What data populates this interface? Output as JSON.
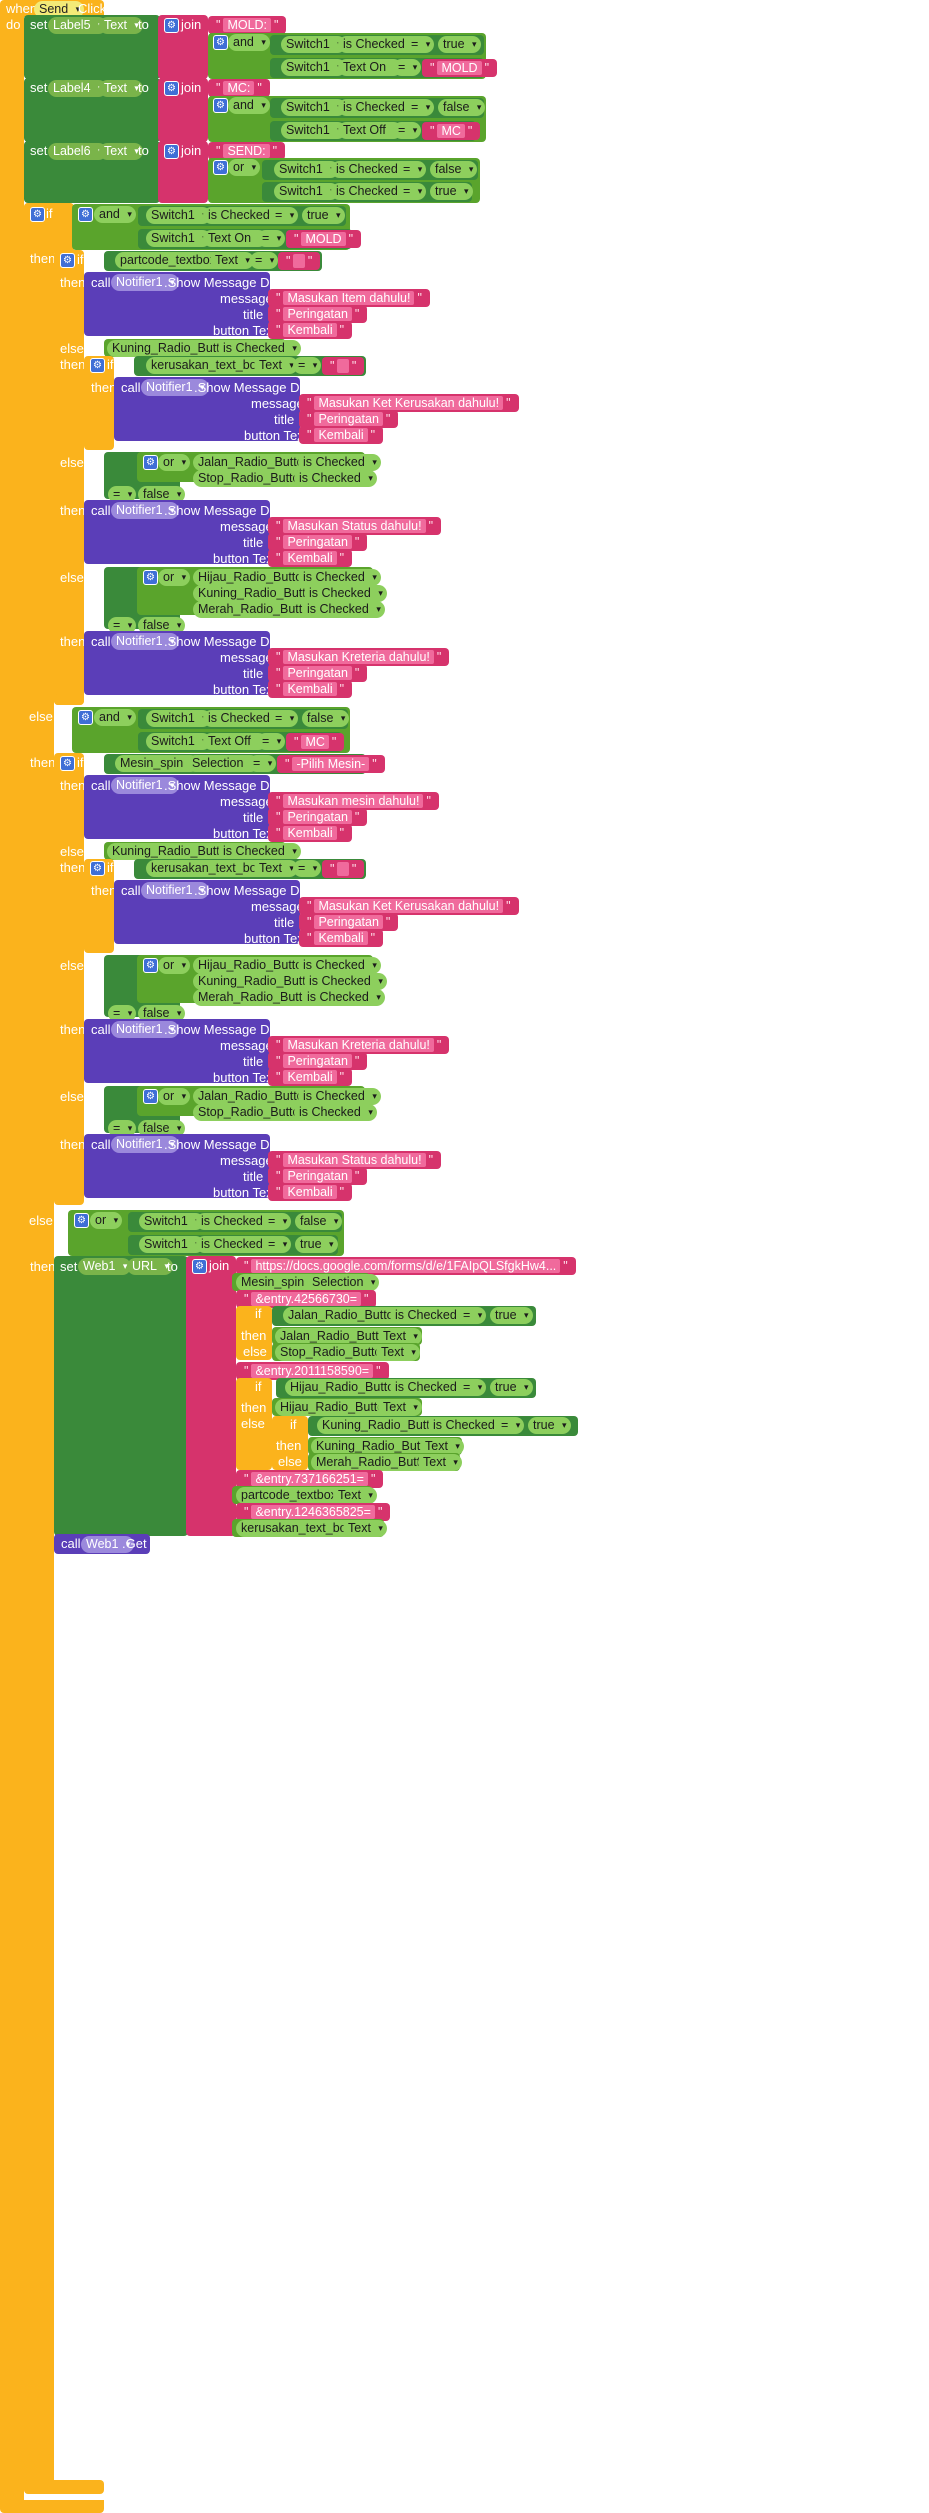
{
  "event": {
    "when": "when",
    "component": "Send",
    "event": "Click",
    "do": "do"
  },
  "kw": {
    "set": "set",
    "to": "to",
    "join": "join",
    "and": "and",
    "or": "or",
    "if": "if",
    "then": "then",
    "else_if": "else if",
    "else": "else",
    "call": "call",
    "show": ".Show Message Dialog",
    "message": "message",
    "title": "title",
    "button_text": "button Text",
    "eq": "=",
    "is_checked": "is Checked",
    "text": "Text",
    "text_on": "Text On",
    "text_off": "Text Off",
    "selection": "Selection",
    "url": "URL",
    "get": ".Get"
  },
  "components": {
    "label5": "Label5",
    "label4": "Label4",
    "label6": "Label6",
    "switch1": "Switch1",
    "notifier": "Notifier1",
    "partcode": "partcode_textbox",
    "kuning": "Kuning_Radio_Button",
    "kerusakan": "kerusakan_text_box",
    "jalan": "Jalan_Radio_Button",
    "stop": "Stop_Radio_Button",
    "hijau": "Hijau_Radio_Button",
    "merah": "Merah_Radio_Button",
    "mesin": "Mesin_spin",
    "web1": "Web1"
  },
  "values": {
    "mold_prefix": "MOLD:",
    "mc_prefix": "MC:",
    "send_prefix": "SEND:",
    "true": "true",
    "false": "false",
    "mold": "MOLD",
    "mc": "MC",
    "pilih_mesin": "-Pilih Mesin-"
  },
  "messages": {
    "item": "Masukan Item dahulu!",
    "ket": "Masukan Ket Kerusakan dahulu!",
    "status": "Masukan Status dahulu!",
    "kreteria": "Masukan Kreteria dahulu!",
    "mesin": "Masukan mesin dahulu!",
    "peringatan": "Peringatan",
    "kembali": "Kembali"
  },
  "url": {
    "base": "https://docs.google.com/forms/d/e/1FAIpQLSfgkHw4...",
    "entry1": "&entry.42566730=",
    "entry2": "&entry.2011158590=",
    "entry3": "&entry.737166251=",
    "entry4": "&entry.1246365825="
  },
  "colors": {
    "event": "#fbb31c",
    "control": "#fbb31c",
    "set": "#3a8a3a",
    "text": "#d6336c",
    "logic": "#5aa42c",
    "call": "#5b3eb8",
    "mutator": "#3f6fd6"
  }
}
